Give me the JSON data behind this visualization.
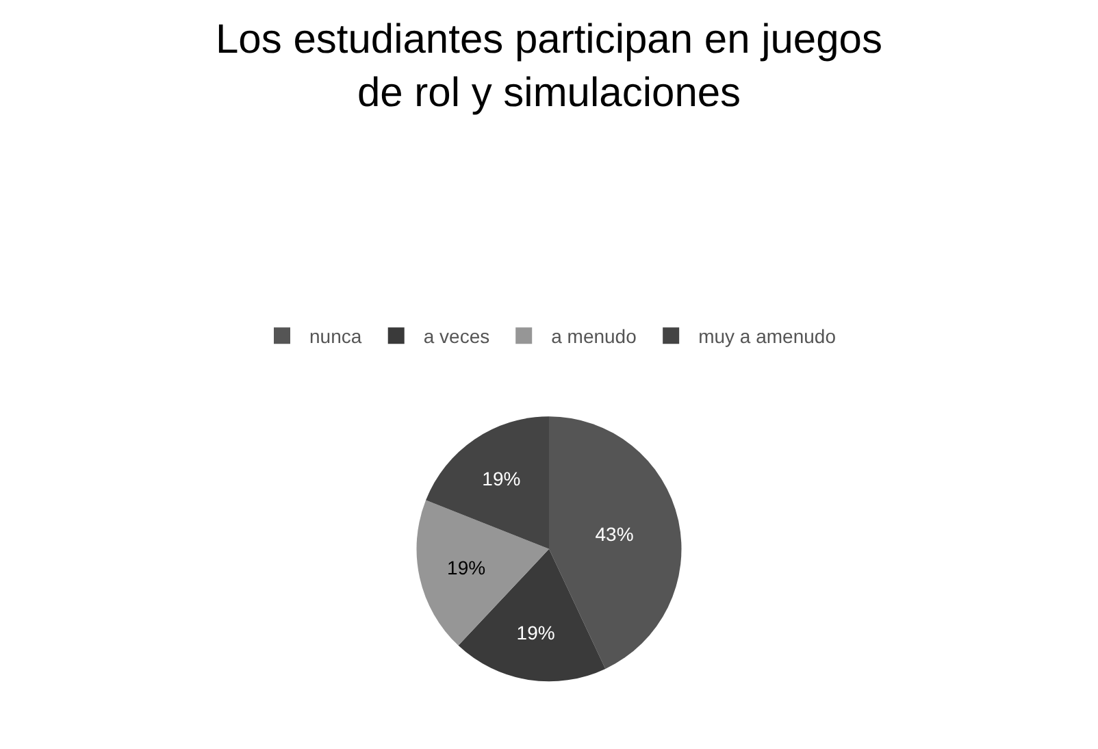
{
  "chart_data": {
    "type": "pie",
    "title": "Los estudiantes participan en juegos\nde rol y simulaciones",
    "categories": [
      "nunca",
      "a veces",
      "a menudo",
      "muy a amenudo"
    ],
    "values": [
      43,
      19,
      19,
      19
    ],
    "value_labels": [
      "43%",
      "19%",
      "19%",
      "19%"
    ],
    "colors": [
      "#555555",
      "#3a3a3a",
      "#969696",
      "#444444"
    ],
    "legend": "top"
  }
}
